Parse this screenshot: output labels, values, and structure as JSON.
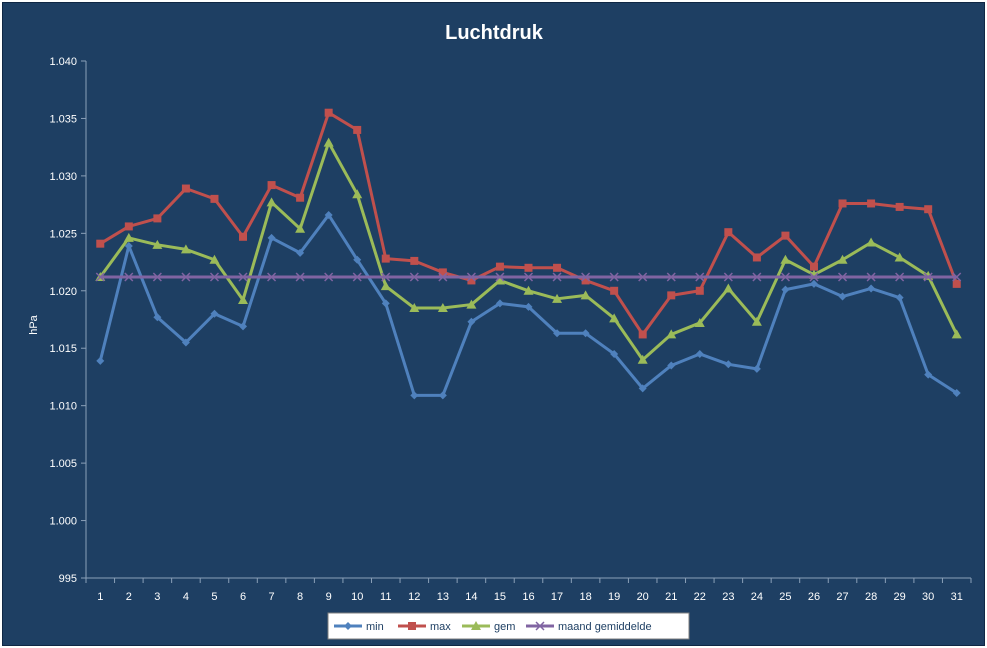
{
  "chart_data": {
    "type": "line",
    "title": "Luchtdruk",
    "ylabel": "hPa",
    "xlabel": "",
    "ylim": [
      995,
      1040
    ],
    "y_ticks": [
      "995",
      "1.000",
      "1.005",
      "1.010",
      "1.015",
      "1.020",
      "1.025",
      "1.030",
      "1.035",
      "1.040"
    ],
    "y_tick_values": [
      995,
      1000,
      1005,
      1010,
      1015,
      1020,
      1025,
      1030,
      1035,
      1040
    ],
    "categories": [
      "1",
      "2",
      "3",
      "4",
      "5",
      "6",
      "7",
      "8",
      "9",
      "10",
      "11",
      "12",
      "13",
      "14",
      "15",
      "16",
      "17",
      "18",
      "19",
      "20",
      "21",
      "22",
      "23",
      "24",
      "25",
      "26",
      "27",
      "28",
      "29",
      "30",
      "31"
    ],
    "grid": false,
    "legend_position": "bottom",
    "series": [
      {
        "name": "min",
        "color": "#4f81bd",
        "marker": "diamond",
        "values": [
          1013.9,
          1023.9,
          1017.7,
          1015.5,
          1018.0,
          1016.9,
          1024.6,
          1023.3,
          1026.6,
          1022.7,
          1018.9,
          1010.9,
          1010.9,
          1017.3,
          1018.9,
          1018.6,
          1016.3,
          1016.3,
          1014.5,
          1011.5,
          1013.5,
          1014.5,
          1013.6,
          1013.2,
          1020.1,
          1020.6,
          1019.5,
          1020.2,
          1019.4,
          1012.7,
          1011.1
        ]
      },
      {
        "name": "max",
        "color": "#c0504d",
        "marker": "square",
        "values": [
          1024.1,
          1025.6,
          1026.3,
          1028.9,
          1028.0,
          1024.7,
          1029.2,
          1028.1,
          1035.5,
          1034.0,
          1022.8,
          1022.6,
          1021.6,
          1020.9,
          1022.1,
          1022.0,
          1022.0,
          1020.9,
          1020.0,
          1016.2,
          1019.6,
          1020.0,
          1025.1,
          1022.9,
          1024.8,
          1022.1,
          1027.6,
          1027.6,
          1027.3,
          1027.1,
          1020.6
        ]
      },
      {
        "name": "gem",
        "color": "#9bbb59",
        "marker": "triangle",
        "values": [
          1021.2,
          1024.6,
          1024.0,
          1023.6,
          1022.7,
          1019.2,
          1027.7,
          1025.4,
          1032.9,
          1028.4,
          1020.4,
          1018.5,
          1018.5,
          1018.8,
          1020.9,
          1020.0,
          1019.3,
          1019.6,
          1017.6,
          1014.0,
          1016.2,
          1017.2,
          1020.2,
          1017.3,
          1022.7,
          1021.4,
          1022.7,
          1024.2,
          1022.9,
          1021.3,
          1016.2
        ]
      },
      {
        "name": "maand gemiddelde",
        "color": "#8064a2",
        "marker": "x",
        "values": [
          1021.2,
          1021.2,
          1021.2,
          1021.2,
          1021.2,
          1021.2,
          1021.2,
          1021.2,
          1021.2,
          1021.2,
          1021.2,
          1021.2,
          1021.2,
          1021.2,
          1021.2,
          1021.2,
          1021.2,
          1021.2,
          1021.2,
          1021.2,
          1021.2,
          1021.2,
          1021.2,
          1021.2,
          1021.2,
          1021.2,
          1021.2,
          1021.2,
          1021.2,
          1021.2,
          1021.2
        ]
      }
    ]
  }
}
